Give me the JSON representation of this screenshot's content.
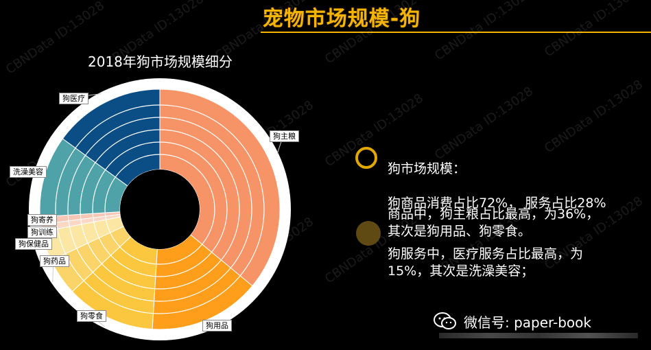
{
  "header": {
    "title": "宠物市场规模-狗"
  },
  "chart_data": {
    "type": "pie",
    "title": "2018年狗市场规模细分",
    "slices": [
      {
        "label": "狗主粮",
        "value": 36,
        "color": "#F79467"
      },
      {
        "label": "狗用品",
        "value": 15,
        "color": "#FF9E1B"
      },
      {
        "label": "狗零食",
        "value": 12,
        "color": "#FAC73F"
      },
      {
        "label": "狗药品",
        "value": 5,
        "color": "#FAD468"
      },
      {
        "label": "狗保健品",
        "value": 4,
        "color": "#FCE6A4"
      },
      {
        "label": "狗训练",
        "value": 1,
        "color": "#FBD7C6"
      },
      {
        "label": "狗寄养",
        "value": 1,
        "color": "#F8C6B4"
      },
      {
        "label": "洗澡美容",
        "value": 11,
        "color": "#4FA3A8"
      },
      {
        "label": "狗医疗",
        "value": 15,
        "color": "#0B4E86"
      }
    ]
  },
  "notes": {
    "market_line1": "狗市场规模：",
    "market_line2": "狗商品消费占比72%， 服务占比28%",
    "goods": "商品中，狗主粮占比最高，为36%，\n其次是狗用品、狗零食。",
    "services": "狗服务中，医疗服务占比最高，为\n15%，其次是洗澡美容；"
  },
  "footer": {
    "wechat": "微信号: paper-book"
  },
  "watermark": "CBNData ID:13028",
  "colors": {
    "accent": "#F5B400"
  }
}
